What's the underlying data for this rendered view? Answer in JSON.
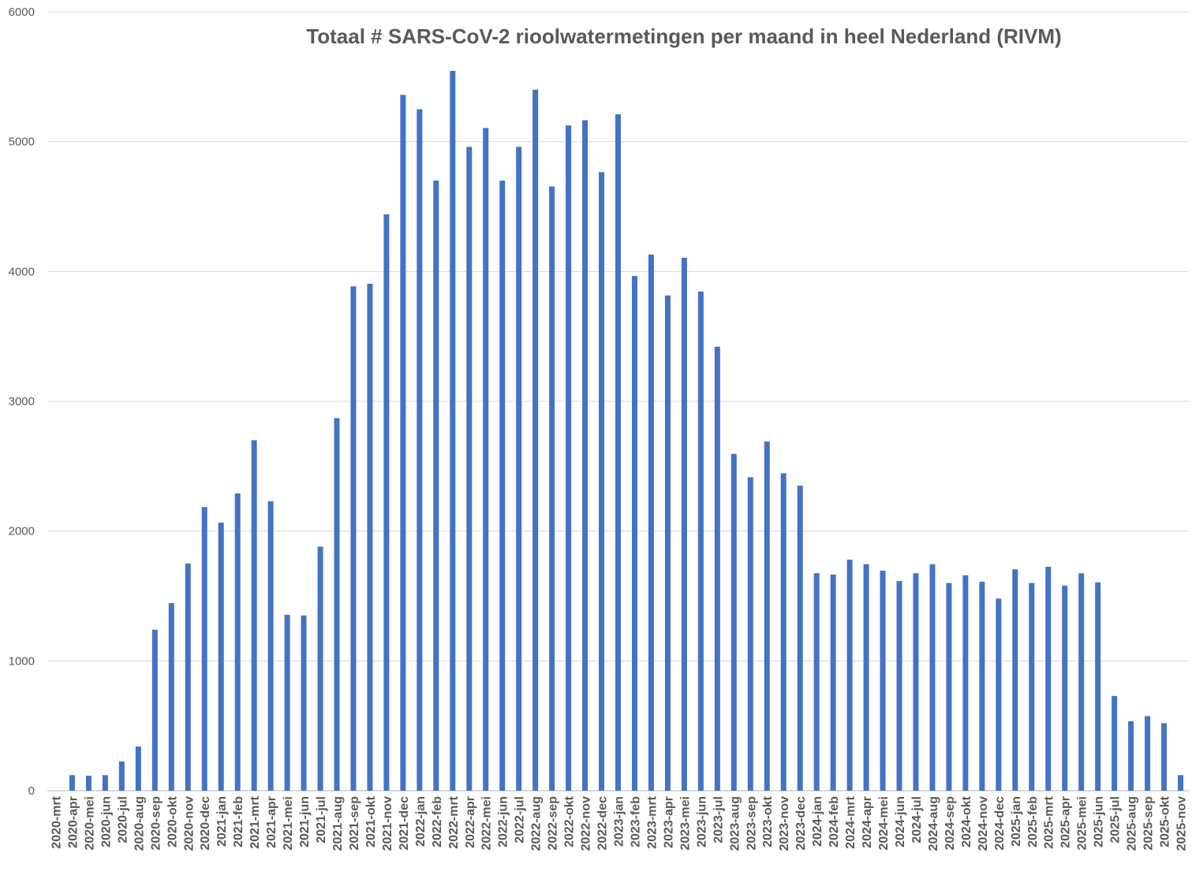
{
  "chart_data": {
    "type": "bar",
    "title": "Totaal # SARS-CoV-2 rioolwatermetingen per maand in heel Nederland (RIVM)",
    "xlabel": "",
    "ylabel": "",
    "ylim": [
      0,
      6000
    ],
    "yticks": [
      0,
      1000,
      2000,
      3000,
      4000,
      5000,
      6000
    ],
    "grid": true,
    "bar_color": "#4472c4",
    "categories": [
      "2020-mrt",
      "2020-apr",
      "2020-mei",
      "2020-jun",
      "2020-jul",
      "2020-aug",
      "2020-sep",
      "2020-okt",
      "2020-nov",
      "2020-dec",
      "2021-jan",
      "2021-feb",
      "2021-mrt",
      "2021-apr",
      "2021-mei",
      "2021-jun",
      "2021-jul",
      "2021-aug",
      "2021-sep",
      "2021-okt",
      "2021-nov",
      "2021-dec",
      "2022-jan",
      "2022-feb",
      "2022-mrt",
      "2022-apr",
      "2022-mei",
      "2022-jun",
      "2022-jul",
      "2022-aug",
      "2022-sep",
      "2022-okt",
      "2022-nov",
      "2022-dec",
      "2023-jan",
      "2023-feb",
      "2023-mrt",
      "2023-apr",
      "2023-mei",
      "2023-jun",
      "2023-jul",
      "2023-aug",
      "2023-sep",
      "2023-okt",
      "2023-nov",
      "2023-dec",
      "2024-jan",
      "2024-feb",
      "2024-mrt",
      "2024-apr",
      "2024-mei",
      "2024-jun",
      "2024-jul",
      "2024-aug",
      "2024-sep",
      "2024-okt",
      "2024-nov",
      "2024-dec",
      "2025-jan",
      "2025-feb",
      "2025-mrt",
      "2025-apr",
      "2025-mei",
      "2025-jun",
      "2025-jul",
      "2025-aug",
      "2025-sep",
      "2025-okt",
      "2025-nov"
    ],
    "values": [
      0,
      120,
      115,
      120,
      225,
      340,
      1240,
      1445,
      1750,
      2185,
      2065,
      2290,
      2700,
      2230,
      1355,
      1350,
      1880,
      2870,
      3885,
      3905,
      4440,
      5360,
      5250,
      4700,
      5545,
      4960,
      5105,
      4700,
      4960,
      5400,
      4655,
      5125,
      5165,
      4765,
      5210,
      3965,
      4130,
      3815,
      4105,
      3845,
      3420,
      2595,
      2415,
      2690,
      2445,
      2350,
      1675,
      1665,
      1780,
      1745,
      1695,
      1615,
      1675,
      1745,
      1600,
      1660,
      1610,
      1480,
      1705,
      1600,
      1725,
      1580,
      1675,
      1605,
      730,
      535,
      575,
      520,
      120
    ]
  }
}
